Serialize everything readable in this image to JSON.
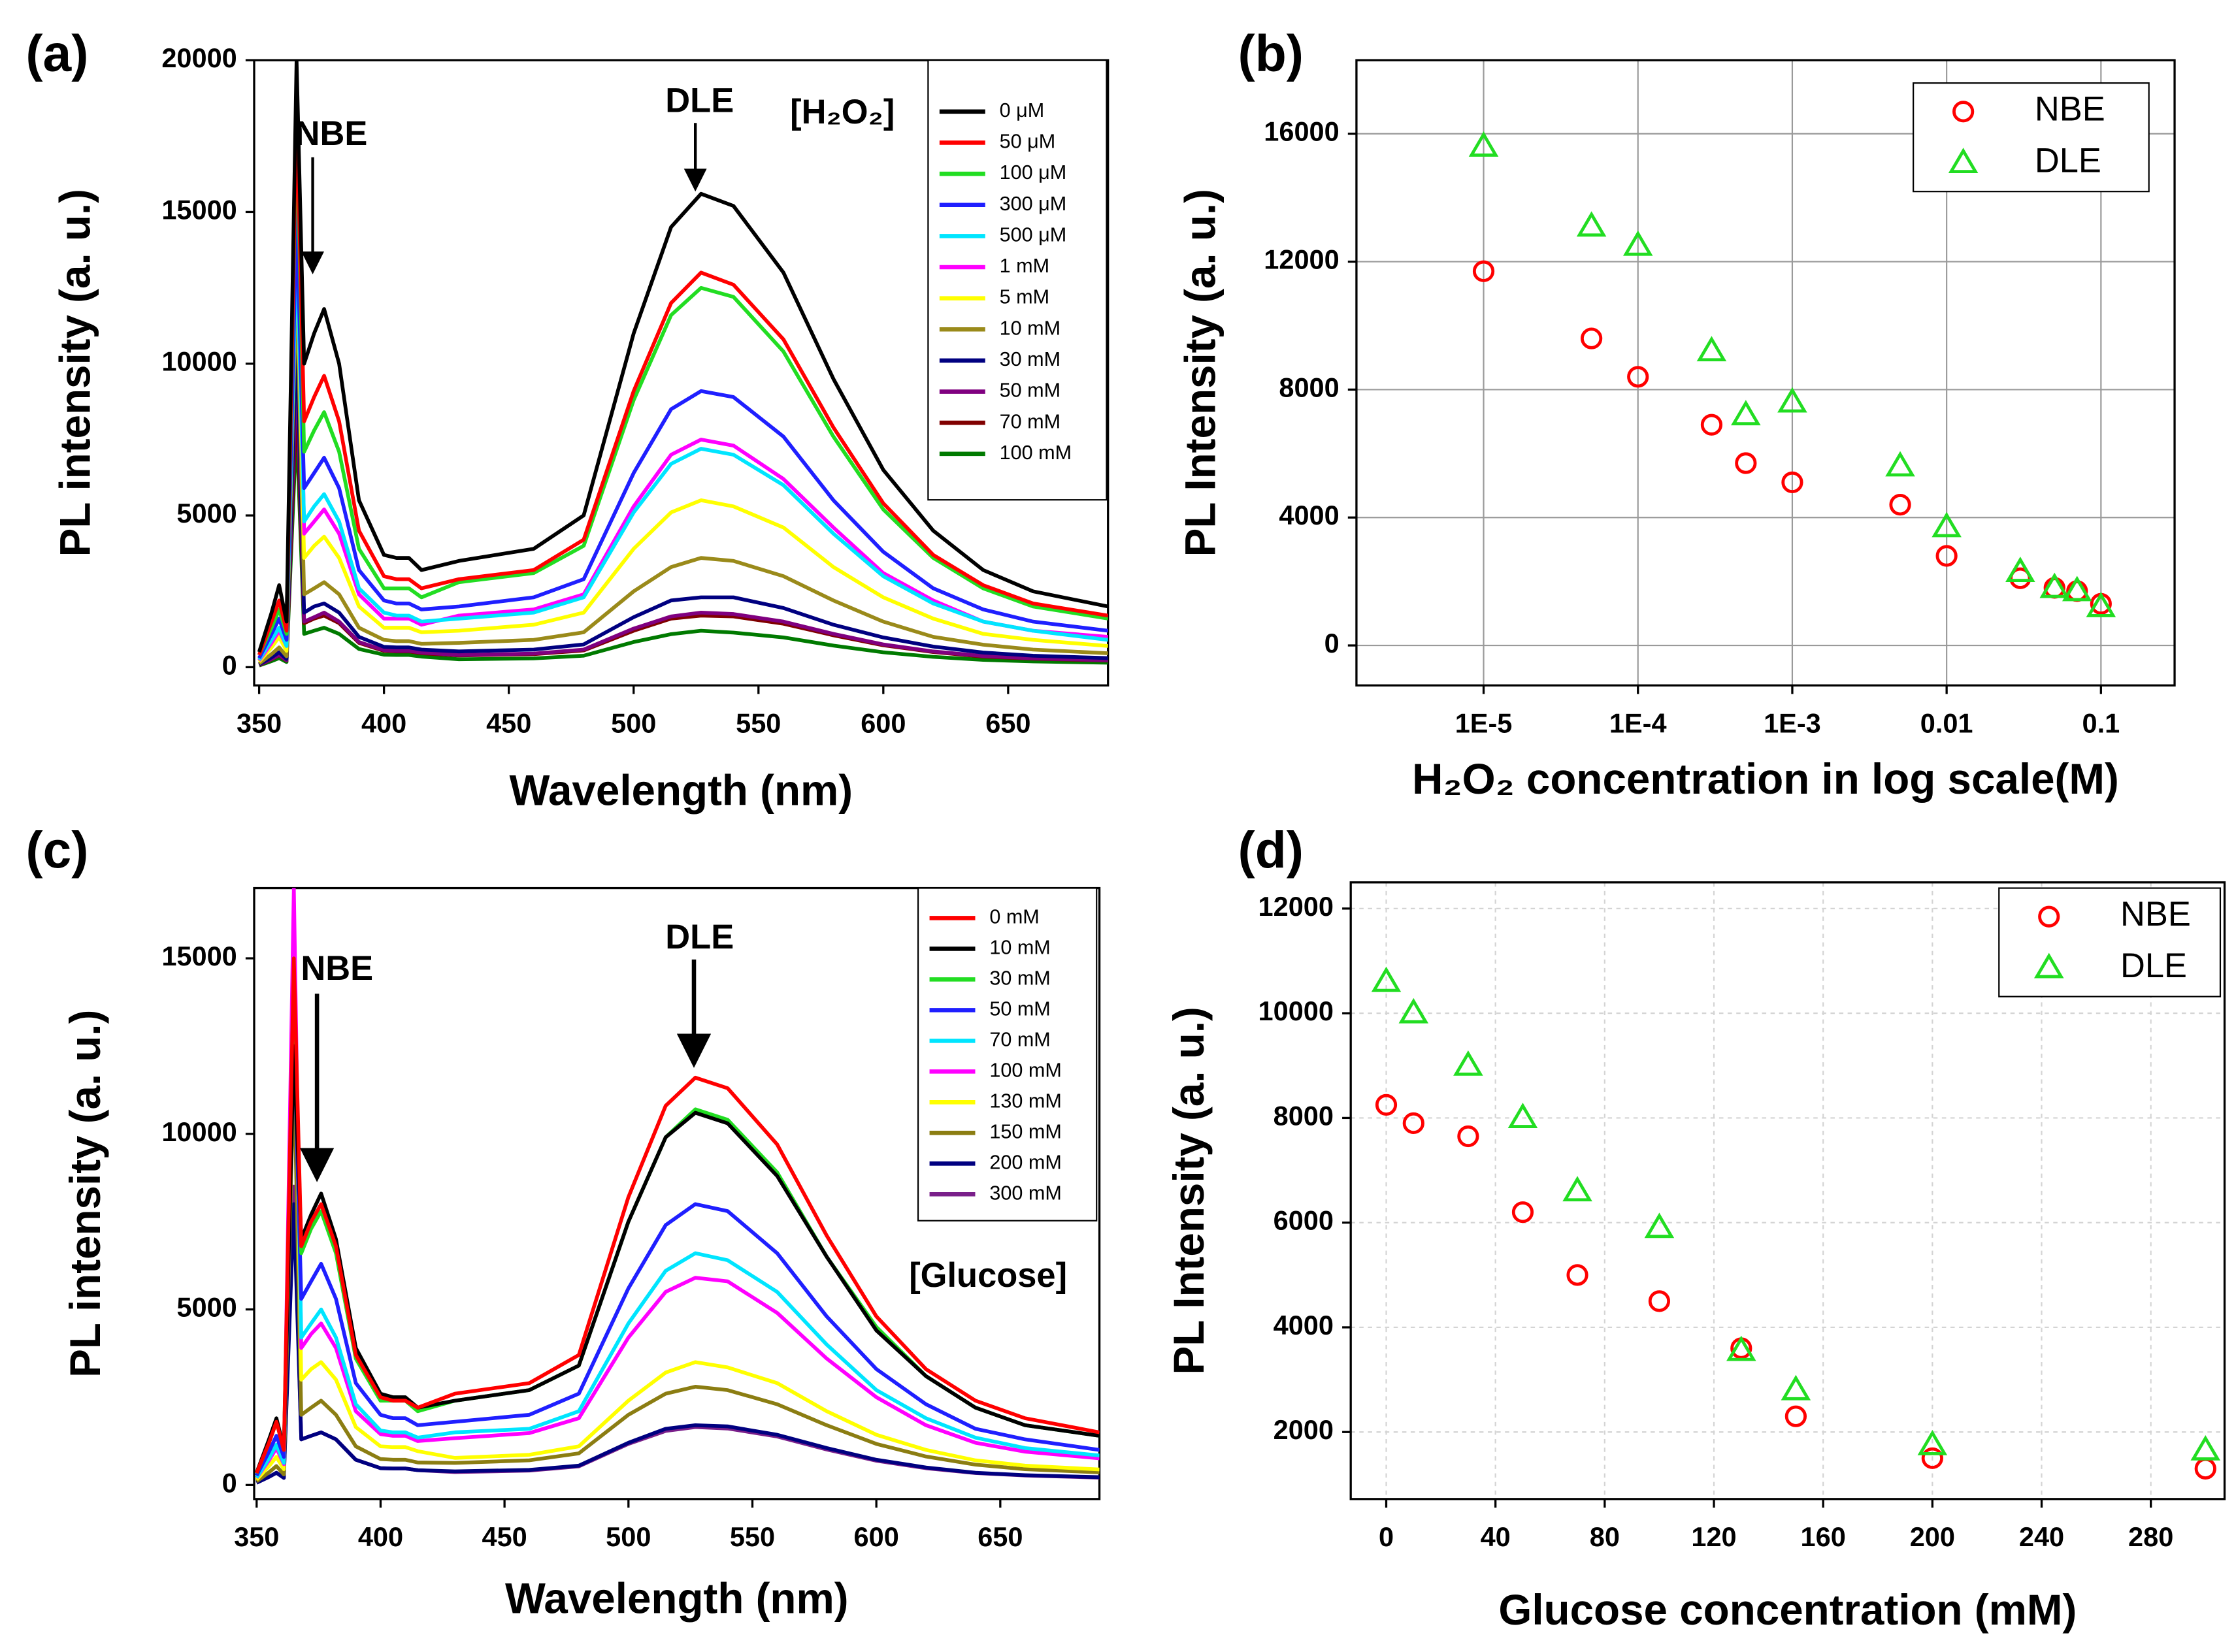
{
  "chart_data": [
    {
      "type": "line",
      "panel_label": "(a)",
      "x_label": "Wavelength (nm)",
      "y_label": "PL intensity (a. u.)",
      "annotations": [
        "NBE",
        "DLE",
        "[H₂O₂]"
      ],
      "xlim": [
        348,
        690
      ],
      "xticks": [
        350,
        400,
        450,
        500,
        550,
        600,
        650
      ],
      "ylim": [
        -600,
        20000
      ],
      "yticks": [
        0,
        5000,
        10000,
        15000,
        20000
      ],
      "grid": false,
      "legend": "upper right",
      "x": [
        350,
        355,
        358,
        361,
        365,
        368,
        372,
        376,
        382,
        390,
        400,
        405,
        410,
        415,
        430,
        460,
        480,
        500,
        515,
        527,
        540,
        560,
        580,
        600,
        620,
        640,
        660,
        690
      ],
      "series": [
        {
          "name": "0 μM",
          "color": "#000000",
          "values": [
            500,
            1800,
            2700,
            1500,
            20000,
            10000,
            11000,
            11800,
            10000,
            5500,
            3700,
            3600,
            3600,
            3200,
            3500,
            3900,
            5000,
            11000,
            14500,
            15600,
            15200,
            13000,
            9500,
            6500,
            4500,
            3200,
            2500,
            2000
          ]
        },
        {
          "name": "50 μM",
          "color": "#ff0000",
          "values": [
            400,
            1500,
            2200,
            1200,
            18500,
            8100,
            8900,
            9600,
            8100,
            4500,
            3000,
            2900,
            2900,
            2600,
            2900,
            3200,
            4200,
            9100,
            12000,
            13000,
            12600,
            10800,
            7900,
            5400,
            3700,
            2700,
            2100,
            1700
          ]
        },
        {
          "name": "100 μM",
          "color": "#22dd22",
          "values": [
            400,
            1300,
            1900,
            1100,
            18000,
            7100,
            7800,
            8400,
            7100,
            3900,
            2600,
            2600,
            2600,
            2300,
            2800,
            3100,
            4000,
            8800,
            11600,
            12500,
            12200,
            10400,
            7600,
            5200,
            3600,
            2600,
            2000,
            1600
          ]
        },
        {
          "name": "300 μM",
          "color": "#1f1fff",
          "values": [
            300,
            1100,
            1600,
            900,
            15000,
            5900,
            6400,
            6900,
            5900,
            3200,
            2200,
            2100,
            2100,
            1900,
            2000,
            2300,
            2900,
            6400,
            8500,
            9100,
            8900,
            7600,
            5500,
            3800,
            2600,
            1900,
            1500,
            1200
          ]
        },
        {
          "name": "500 μM",
          "color": "#00e5ff",
          "values": [
            240,
            900,
            1300,
            700,
            14000,
            4800,
            5300,
            5700,
            4800,
            2600,
            1800,
            1700,
            1700,
            1500,
            1600,
            1800,
            2300,
            5100,
            6700,
            7200,
            7000,
            6000,
            4400,
            3000,
            2100,
            1500,
            1200,
            900
          ]
        },
        {
          "name": "1 mM",
          "color": "#ff00ff",
          "values": [
            220,
            800,
            1200,
            700,
            18500,
            4400,
            4800,
            5200,
            4400,
            2400,
            1600,
            1600,
            1600,
            1400,
            1700,
            1900,
            2400,
            5300,
            7000,
            7500,
            7300,
            6200,
            4600,
            3100,
            2200,
            1500,
            1200,
            1000
          ]
        },
        {
          "name": "5 mM",
          "color": "#ffff00",
          "values": [
            180,
            650,
            1000,
            540,
            14000,
            3600,
            4000,
            4300,
            3600,
            2000,
            1300,
            1300,
            1300,
            1150,
            1200,
            1400,
            1800,
            3900,
            5100,
            5500,
            5300,
            4600,
            3300,
            2300,
            1600,
            1100,
            900,
            700
          ]
        },
        {
          "name": "10 mM",
          "color": "#9a8a1a",
          "values": [
            120,
            430,
            650,
            360,
            12800,
            2400,
            2600,
            2800,
            2400,
            1300,
            900,
            860,
            860,
            770,
            800,
            900,
            1150,
            2500,
            3300,
            3600,
            3500,
            3000,
            2200,
            1500,
            1000,
            740,
            580,
            460
          ]
        },
        {
          "name": "30 mM",
          "color": "#000080",
          "values": [
            90,
            320,
            490,
            270,
            11000,
            1800,
            2000,
            2100,
            1800,
            1000,
            670,
            650,
            650,
            580,
            520,
            580,
            750,
            1650,
            2200,
            2300,
            2300,
            1950,
            1400,
            980,
            680,
            480,
            380,
            300
          ]
        },
        {
          "name": "50 mM",
          "color": "#800080",
          "values": [
            80,
            270,
            400,
            230,
            10000,
            1500,
            1650,
            1800,
            1500,
            830,
            560,
            540,
            540,
            480,
            400,
            450,
            580,
            1270,
            1670,
            1800,
            1750,
            1500,
            1100,
            750,
            520,
            370,
            290,
            230
          ]
        },
        {
          "name": "70 mM",
          "color": "#800000",
          "values": [
            70,
            260,
            390,
            220,
            9000,
            1450,
            1600,
            1700,
            1450,
            800,
            540,
            520,
            520,
            460,
            390,
            430,
            550,
            1200,
            1600,
            1700,
            1670,
            1430,
            1050,
            720,
            500,
            350,
            280,
            220
          ]
        },
        {
          "name": "100 mM",
          "color": "#007a00",
          "values": [
            55,
            200,
            300,
            170,
            8000,
            1100,
            1200,
            1300,
            1100,
            600,
            410,
            400,
            400,
            350,
            260,
            290,
            380,
            830,
            1090,
            1200,
            1140,
            980,
            710,
            490,
            340,
            240,
            190,
            150
          ]
        }
      ]
    },
    {
      "type": "scatter",
      "panel_label": "(b)",
      "x_label": "H₂O₂ concentration in log scale(M)",
      "y_label": "PL Intensity (a. u.)",
      "xlim": [
        1.5e-06,
        0.3
      ],
      "x_scale": "log",
      "xticks": [
        {
          "value": 1e-05,
          "label": "1E-5"
        },
        {
          "value": 0.0001,
          "label": "1E-4"
        },
        {
          "value": 0.001,
          "label": "1E-3"
        },
        0.01,
        0.1
      ],
      "ylim": [
        -1250,
        18300
      ],
      "yticks": [
        0,
        4000,
        8000,
        12000,
        16000
      ],
      "grid": true,
      "legend": "upper right",
      "x": [
        1e-05,
        5e-05,
        0.0001,
        0.0003,
        0.0005,
        0.001,
        0.005,
        0.01,
        0.03,
        0.05,
        0.07,
        0.1
      ],
      "series": [
        {
          "name": "NBE",
          "color": "#ff0000",
          "marker": "circle",
          "values": [
            11700,
            9600,
            8400,
            6900,
            5700,
            5100,
            4400,
            2800,
            2100,
            1800,
            1700,
            1300
          ]
        },
        {
          "name": "DLE",
          "color": "#22dd22",
          "marker": "triangle",
          "values": [
            15600,
            13100,
            12500,
            9200,
            7200,
            7600,
            5600,
            3700,
            2300,
            1800,
            1700,
            1200
          ]
        }
      ]
    },
    {
      "type": "line",
      "panel_label": "(c)",
      "x_label": "Wavelength (nm)",
      "y_label": "PL intensity (a. u.)",
      "annotations": [
        "NBE",
        "DLE",
        "[Glucose]"
      ],
      "xlim": [
        349,
        690
      ],
      "xticks": [
        350,
        400,
        450,
        500,
        550,
        600,
        650
      ],
      "ylim": [
        -400,
        17000
      ],
      "yticks": [
        0,
        5000,
        10000,
        15000
      ],
      "grid": false,
      "legend": "upper right",
      "x": [
        350,
        355,
        358,
        361,
        365,
        368,
        372,
        376,
        382,
        390,
        400,
        405,
        410,
        415,
        430,
        460,
        480,
        500,
        515,
        527,
        540,
        560,
        580,
        600,
        620,
        640,
        660,
        690
      ],
      "series": [
        {
          "name": "0 mM",
          "color": "#ff0000",
          "values": [
            340,
            1200,
            1800,
            1000,
            15000,
            6800,
            7500,
            8000,
            6800,
            3700,
            2500,
            2400,
            2400,
            2200,
            2600,
            2900,
            3700,
            8200,
            10800,
            11600,
            11300,
            9700,
            7100,
            4800,
            3300,
            2400,
            1900,
            1500
          ]
        },
        {
          "name": "10 mM",
          "color": "#000000",
          "values": [
            350,
            1300,
            1900,
            1050,
            12500,
            7000,
            7700,
            8300,
            7000,
            3900,
            2600,
            2500,
            2500,
            2200,
            2400,
            2700,
            3400,
            7500,
            9900,
            10600,
            10300,
            8800,
            6500,
            4400,
            3100,
            2200,
            1700,
            1400
          ]
        },
        {
          "name": "30 mM",
          "color": "#22dd22",
          "values": [
            330,
            1200,
            1800,
            1000,
            14500,
            6600,
            7300,
            7800,
            6600,
            3600,
            2400,
            2400,
            2400,
            2100,
            2400,
            2700,
            3400,
            7500,
            9900,
            10700,
            10400,
            8900,
            6500,
            4500,
            3100,
            2200,
            1700,
            1400
          ]
        },
        {
          "name": "50 mM",
          "color": "#1f1fff",
          "values": [
            270,
            950,
            1400,
            800,
            13000,
            5300,
            5800,
            6300,
            5300,
            2900,
            2000,
            1900,
            1900,
            1700,
            1800,
            2000,
            2600,
            5600,
            7400,
            8000,
            7800,
            6600,
            4800,
            3300,
            2300,
            1600,
            1300,
            1000
          ]
        },
        {
          "name": "70 mM",
          "color": "#00e5ff",
          "values": [
            210,
            760,
            1150,
            630,
            15000,
            4200,
            4600,
            5000,
            4200,
            2300,
            1550,
            1500,
            1500,
            1350,
            1500,
            1600,
            2100,
            4600,
            6100,
            6600,
            6400,
            5500,
            4000,
            2700,
            1900,
            1350,
            1050,
            840
          ]
        },
        {
          "name": "100 mM",
          "color": "#ff00ff",
          "values": [
            200,
            700,
            1050,
            590,
            17000,
            3900,
            4300,
            4600,
            3900,
            2100,
            1450,
            1400,
            1400,
            1250,
            1330,
            1480,
            1900,
            4200,
            5500,
            5900,
            5800,
            4900,
            3600,
            2500,
            1700,
            1200,
            950,
            760
          ]
        },
        {
          "name": "130 mM",
          "color": "#ffff00",
          "values": [
            150,
            540,
            800,
            450,
            15500,
            3000,
            3300,
            3500,
            3000,
            1650,
            1100,
            1080,
            1080,
            960,
            770,
            860,
            1100,
            2400,
            3200,
            3500,
            3350,
            2900,
            2100,
            1430,
            1000,
            700,
            550,
            440
          ]
        },
        {
          "name": "150 mM",
          "color": "#8b7d12",
          "values": [
            100,
            360,
            540,
            300,
            12000,
            2000,
            2200,
            2400,
            2000,
            1100,
            740,
            720,
            720,
            640,
            630,
            700,
            900,
            2000,
            2600,
            2800,
            2700,
            2300,
            1700,
            1170,
            810,
            580,
            450,
            360
          ]
        },
        {
          "name": "200 mM",
          "color": "#000080",
          "values": [
            65,
            230,
            350,
            200,
            8000,
            1300,
            1400,
            1500,
            1300,
            720,
            480,
            470,
            470,
            420,
            390,
            430,
            550,
            1200,
            1600,
            1700,
            1670,
            1430,
            1050,
            720,
            500,
            350,
            280,
            220
          ]
        },
        {
          "name": "300 mM",
          "color": "#7a1f8a",
          "values": [
            65,
            230,
            350,
            200,
            8500,
            1300,
            1400,
            1500,
            1300,
            720,
            480,
            470,
            470,
            420,
            370,
            410,
            530,
            1170,
            1540,
            1650,
            1610,
            1380,
            1010,
            690,
            480,
            340,
            270,
            210
          ]
        }
      ]
    },
    {
      "type": "scatter",
      "panel_label": "(d)",
      "x_label": "Glucose concentration (mM)",
      "y_label": "PL Intensity (a. u.)",
      "xlim": [
        -13,
        307
      ],
      "xticks": [
        0,
        40,
        80,
        120,
        160,
        200,
        240,
        280
      ],
      "ylim": [
        720,
        12500
      ],
      "yticks": [
        2000,
        4000,
        6000,
        8000,
        10000,
        12000
      ],
      "grid": true,
      "legend": "upper right",
      "x": [
        0,
        10,
        30,
        50,
        70,
        100,
        130,
        150,
        200,
        300
      ],
      "series": [
        {
          "name": "NBE",
          "color": "#ff0000",
          "marker": "circle",
          "values": [
            8250,
            7900,
            7650,
            6200,
            5000,
            4500,
            3600,
            2300,
            1500,
            1300
          ]
        },
        {
          "name": "DLE",
          "color": "#22dd22",
          "marker": "triangle",
          "values": [
            10600,
            10000,
            9000,
            8000,
            6600,
            5900,
            3550,
            2800,
            1750,
            1650
          ]
        }
      ]
    }
  ]
}
